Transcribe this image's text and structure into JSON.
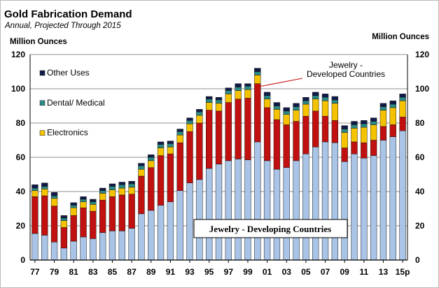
{
  "header": {
    "title": "Gold Fabrication Demand",
    "subtitle": "Annual, Projected Through 2015",
    "ylabel_left": "Million Ounces",
    "ylabel_right": "Million Ounces"
  },
  "colors": {
    "developing": "#a9c4e6",
    "developed": "#c0100f",
    "electronics": "#f5c200",
    "dental": "#2a8a86",
    "other": "#101a48"
  },
  "chart_data": {
    "type": "bar",
    "stacked": true,
    "title": "Gold Fabrication Demand",
    "subtitle": "Annual, Projected Through 2015",
    "xlabel": "",
    "ylabel": "Million Ounces",
    "ylim": [
      0,
      120
    ],
    "yticks": [
      0,
      20,
      40,
      60,
      80,
      100,
      120
    ],
    "grid": true,
    "legend_position": "top-left",
    "categories": [
      "77",
      "78",
      "79",
      "80",
      "81",
      "82",
      "83",
      "84",
      "85",
      "86",
      "87",
      "88",
      "89",
      "90",
      "91",
      "92",
      "93",
      "94",
      "95",
      "96",
      "97",
      "98",
      "99",
      "00",
      "01",
      "02",
      "03",
      "04",
      "05",
      "06",
      "07",
      "08",
      "09",
      "10",
      "11",
      "12",
      "13",
      "14",
      "15p"
    ],
    "xtick_labels": [
      "77",
      "79",
      "81",
      "83",
      "85",
      "87",
      "89",
      "91",
      "93",
      "95",
      "97",
      "99",
      "01",
      "03",
      "05",
      "07",
      "09",
      "11",
      "13",
      "15p"
    ],
    "series": [
      {
        "name": "Jewelry - Developing Countries",
        "values": [
          15.5,
          14.5,
          10.5,
          7,
          11,
          13.5,
          12.5,
          16,
          17,
          17,
          18.5,
          27,
          29,
          32,
          34,
          40.5,
          45,
          47,
          53.5,
          56,
          58,
          59,
          58.5,
          69,
          58,
          53,
          54,
          58,
          62,
          66,
          69,
          68.5,
          57.5,
          62,
          59.5,
          61,
          70,
          72,
          75.5
        ]
      },
      {
        "name": "Jewelry - Developed Countries",
        "values": [
          21.5,
          23,
          21,
          12,
          15,
          17,
          16,
          19,
          20,
          21,
          20,
          22,
          25,
          29,
          28,
          28,
          30,
          33,
          34,
          31,
          34,
          35,
          36,
          34,
          31,
          29,
          25,
          23,
          22,
          21,
          15,
          13,
          8,
          7,
          9,
          9,
          8,
          7,
          8
        ]
      },
      {
        "name": "Electronics",
        "values": [
          3.5,
          4,
          4.5,
          4,
          4.5,
          3.5,
          4,
          4,
          4,
          4,
          4,
          4,
          4,
          4.5,
          4,
          4.5,
          4.5,
          4.5,
          4.5,
          4.5,
          5,
          5,
          5,
          5,
          5,
          6,
          6,
          6.5,
          7,
          7,
          9,
          10,
          9,
          8,
          9,
          9,
          9.5,
          10,
          9.5
        ]
      },
      {
        "name": "Dental/ Medical",
        "values": [
          1.5,
          1.5,
          1.5,
          1.5,
          1.5,
          1.5,
          1.5,
          1.5,
          2,
          2,
          2,
          2,
          2,
          2,
          2,
          2,
          2,
          2,
          2,
          2,
          2,
          2,
          2,
          2,
          2,
          2,
          2,
          2,
          2,
          2,
          2,
          2,
          2,
          2,
          2,
          2,
          2,
          2,
          2
        ]
      },
      {
        "name": "Other Uses",
        "values": [
          2,
          2,
          2,
          1.5,
          1.5,
          1.5,
          1.5,
          1.5,
          1.5,
          1.5,
          1.5,
          1.5,
          1.5,
          1.5,
          1.5,
          1.5,
          1.5,
          1.5,
          1.5,
          1.5,
          1.5,
          2,
          1.5,
          2,
          2,
          2,
          2,
          2,
          2,
          2,
          2,
          2,
          2,
          2,
          2,
          2,
          2,
          2,
          2
        ]
      }
    ],
    "legend": [
      "Other Uses",
      "Dental/ Medical",
      "Electronics"
    ],
    "annotations": [
      {
        "text_lines": [
          "Jewelry -",
          "Developed Countries"
        ],
        "points_to": "00"
      },
      {
        "text": "Jewelry - Developing Countries",
        "boxed": true
      }
    ]
  }
}
